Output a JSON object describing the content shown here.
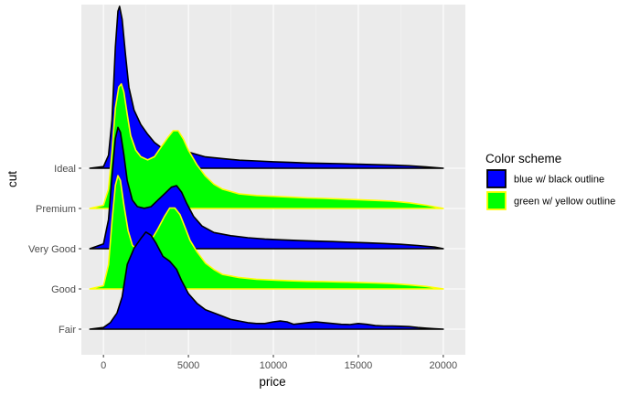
{
  "chart_data": {
    "type": "area",
    "subtype": "ridgeline-density",
    "title": "",
    "xlabel": "price",
    "ylabel": "cut",
    "xlim": [
      -1300,
      21300
    ],
    "x_ticks": [
      0,
      5000,
      10000,
      15000,
      20000
    ],
    "x_tick_labels": [
      "0",
      "5000",
      "10000",
      "15000",
      "20000"
    ],
    "categories": [
      "Fair",
      "Good",
      "Very Good",
      "Premium",
      "Ideal"
    ],
    "grid": true,
    "panel_background": "#ebebeb",
    "legend": {
      "title": "Color scheme",
      "placement": "right",
      "entries": [
        {
          "label": "blue w/ black outline",
          "fill": "#0000ff",
          "outline": "#000000"
        },
        {
          "label": "green w/ yellow outline",
          "fill": "#00ff00",
          "outline": "#ffff00"
        }
      ]
    },
    "series": [
      {
        "name": "Ideal",
        "fill": "#0000ff",
        "outline": "#000000",
        "x": [
          -800,
          0,
          300,
          500,
          700,
          850,
          950,
          1100,
          1300,
          1500,
          1800,
          2200,
          2600,
          3000,
          3500,
          4000,
          4500,
          5000,
          5500,
          6000,
          7000,
          8000,
          9000,
          10000,
          11000,
          12000,
          13000,
          14000,
          15000,
          16000,
          17000,
          18000,
          19000,
          20000
        ],
        "height": [
          0.0,
          0.01,
          0.08,
          0.3,
          0.75,
          0.97,
          1.0,
          0.92,
          0.7,
          0.5,
          0.36,
          0.27,
          0.21,
          0.16,
          0.12,
          0.1,
          0.11,
          0.1,
          0.085,
          0.07,
          0.06,
          0.05,
          0.045,
          0.04,
          0.036,
          0.032,
          0.03,
          0.028,
          0.025,
          0.022,
          0.019,
          0.015,
          0.008,
          0.0
        ]
      },
      {
        "name": "Premium",
        "fill": "#00ff00",
        "outline": "#ffff00",
        "x": [
          -800,
          0,
          300,
          500,
          700,
          900,
          1050,
          1200,
          1400,
          1600,
          1900,
          2200,
          2600,
          3000,
          3400,
          3800,
          4100,
          4400,
          4700,
          5000,
          5500,
          6000,
          6500,
          7000,
          8000,
          9000,
          10000,
          11000,
          12000,
          13000,
          14000,
          15000,
          16000,
          17000,
          18000,
          19000,
          20000
        ],
        "height": [
          0.0,
          0.02,
          0.12,
          0.35,
          0.62,
          0.75,
          0.77,
          0.72,
          0.58,
          0.45,
          0.36,
          0.32,
          0.3,
          0.32,
          0.38,
          0.44,
          0.48,
          0.48,
          0.43,
          0.36,
          0.27,
          0.2,
          0.15,
          0.12,
          0.09,
          0.08,
          0.075,
          0.07,
          0.065,
          0.062,
          0.058,
          0.054,
          0.05,
          0.045,
          0.035,
          0.02,
          0.0
        ]
      },
      {
        "name": "Very Good",
        "fill": "#0000ff",
        "outline": "#000000",
        "x": [
          -800,
          0,
          300,
          500,
          700,
          850,
          1000,
          1200,
          1400,
          1700,
          2000,
          2400,
          2800,
          3200,
          3600,
          4000,
          4300,
          4600,
          4900,
          5300,
          5800,
          6500,
          7500,
          8500,
          9500,
          10500,
          11500,
          12500,
          13500,
          14500,
          15500,
          16500,
          17500,
          18500,
          19500,
          20000
        ],
        "height": [
          0.0,
          0.03,
          0.18,
          0.45,
          0.68,
          0.75,
          0.72,
          0.58,
          0.42,
          0.3,
          0.26,
          0.25,
          0.26,
          0.3,
          0.34,
          0.38,
          0.39,
          0.35,
          0.28,
          0.2,
          0.14,
          0.1,
          0.08,
          0.068,
          0.06,
          0.055,
          0.05,
          0.047,
          0.044,
          0.04,
          0.036,
          0.032,
          0.027,
          0.02,
          0.01,
          0.0
        ]
      },
      {
        "name": "Good",
        "fill": "#00ff00",
        "outline": "#ffff00",
        "x": [
          -800,
          0,
          300,
          500,
          700,
          850,
          1000,
          1200,
          1450,
          1700,
          2000,
          2400,
          2800,
          3200,
          3600,
          3900,
          4200,
          4500,
          4800,
          5100,
          5500,
          6000,
          6500,
          7000,
          8000,
          9000,
          10000,
          11000,
          12000,
          13000,
          14000,
          15000,
          16000,
          17000,
          18000,
          19000,
          20000
        ],
        "height": [
          0.0,
          0.02,
          0.15,
          0.42,
          0.64,
          0.7,
          0.67,
          0.52,
          0.36,
          0.27,
          0.24,
          0.26,
          0.3,
          0.37,
          0.45,
          0.5,
          0.5,
          0.46,
          0.38,
          0.3,
          0.23,
          0.16,
          0.12,
          0.09,
          0.07,
          0.06,
          0.055,
          0.05,
          0.047,
          0.045,
          0.043,
          0.04,
          0.037,
          0.033,
          0.025,
          0.015,
          0.0
        ]
      },
      {
        "name": "Fair",
        "fill": "#0000ff",
        "outline": "#000000",
        "x": [
          -800,
          0,
          400,
          800,
          1100,
          1400,
          1800,
          2200,
          2500,
          2800,
          3100,
          3500,
          3900,
          4300,
          4600,
          5000,
          5500,
          6000,
          6500,
          7000,
          7500,
          8000,
          8500,
          9000,
          9500,
          10000,
          10400,
          10800,
          11200,
          11600,
          12000,
          12500,
          13000,
          13500,
          14000,
          14500,
          15000,
          15500,
          16000,
          16500,
          17000,
          17500,
          18000,
          18500,
          19000,
          19500,
          20000
        ],
        "height": [
          0.0,
          0.01,
          0.04,
          0.1,
          0.2,
          0.4,
          0.5,
          0.56,
          0.6,
          0.58,
          0.53,
          0.45,
          0.42,
          0.37,
          0.3,
          0.22,
          0.16,
          0.12,
          0.1,
          0.08,
          0.06,
          0.05,
          0.04,
          0.035,
          0.035,
          0.045,
          0.05,
          0.045,
          0.03,
          0.035,
          0.04,
          0.045,
          0.04,
          0.035,
          0.03,
          0.028,
          0.035,
          0.03,
          0.022,
          0.02,
          0.02,
          0.018,
          0.016,
          0.01,
          0.006,
          0.003,
          0.0
        ]
      }
    ]
  }
}
